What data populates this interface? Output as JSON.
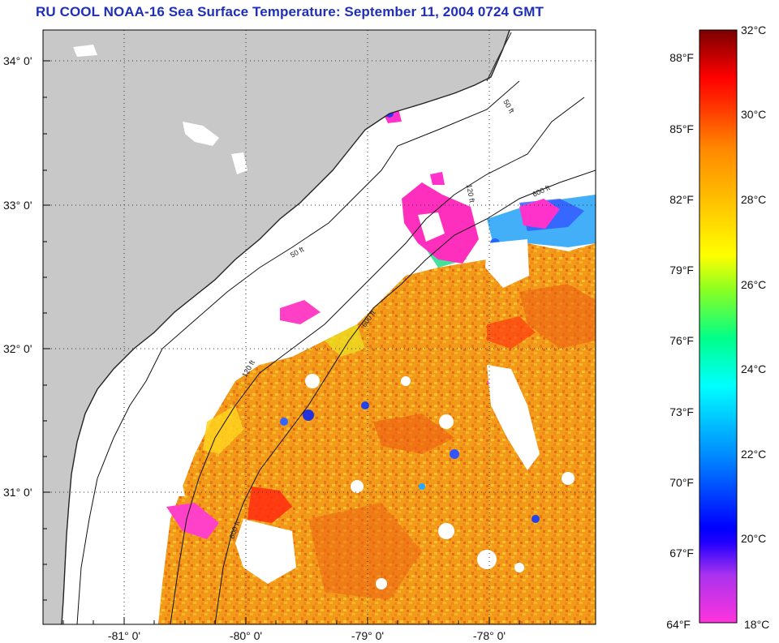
{
  "title": "RU COOL  NOAA-16  Sea Surface Temperature:  September 11, 2004 0724 GMT",
  "map": {
    "lat_labels": [
      "34° 0'",
      "33° 0'",
      "32° 0'",
      "31° 0'"
    ],
    "lon_labels": [
      "-81° 0'",
      "-80° 0'",
      "-79° 0'",
      "-78° 0'"
    ],
    "grid": "dotted",
    "land_color": "#c8c8c8",
    "cloud_color": "#ffffff",
    "contours": [
      {
        "label": "50 ft"
      },
      {
        "label": "120 ft"
      },
      {
        "label": "600 ft"
      }
    ]
  },
  "colorbar": {
    "fahrenheit_labels": [
      "88°F",
      "85°F",
      "82°F",
      "79°F",
      "76°F",
      "73°F",
      "70°F",
      "67°F",
      "64°F"
    ],
    "celsius_labels": [
      "32°C",
      "30°C",
      "28°C",
      "26°C",
      "24°C",
      "22°C",
      "20°C",
      "18°C"
    ],
    "range_c": [
      18,
      32
    ],
    "colors": [
      "#ff00ff",
      "#ff33cc",
      "#cc44dd",
      "#0000ff",
      "#0088ff",
      "#00ffff",
      "#00ff99",
      "#99ff33",
      "#ffff00",
      "#ffcc00",
      "#ff9900",
      "#ff5500",
      "#ff0000",
      "#aa0000",
      "#7a0000"
    ]
  }
}
